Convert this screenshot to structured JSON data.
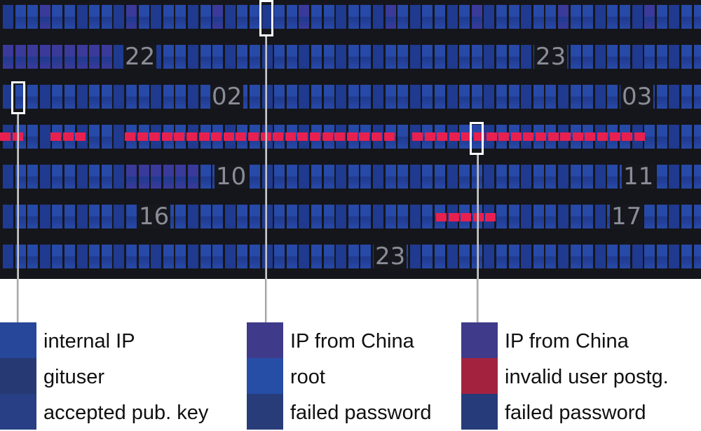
{
  "colors": {
    "background": "#15161c",
    "cell_blue_light": "#2749a8",
    "cell_blue_dark": "#1f3a8e",
    "cell_purple": "#3a3a9a",
    "alert_red": "#e8204f",
    "marker": "#ffffff"
  },
  "rows": [
    {
      "hour_labels": []
    },
    {
      "hour_labels": [
        "22",
        "23"
      ]
    },
    {
      "hour_labels": [
        "02",
        "03"
      ]
    },
    {
      "hour_labels": []
    },
    {
      "hour_labels": [
        "10",
        "11"
      ]
    },
    {
      "hour_labels": [
        "16",
        "17"
      ]
    },
    {
      "hour_labels": [
        "23"
      ]
    }
  ],
  "legend": [
    {
      "items": [
        {
          "label": "internal IP",
          "color": "#27479a"
        },
        {
          "label": "gituser",
          "color": "#263973"
        },
        {
          "label": "accepted pub. key",
          "color": "#283f86"
        }
      ]
    },
    {
      "items": [
        {
          "label": "IP from China",
          "color": "#3f3a8a"
        },
        {
          "label": "root",
          "color": "#274ea6"
        },
        {
          "label": "failed password",
          "color": "#293c7a"
        }
      ]
    },
    {
      "items": [
        {
          "label": "IP from China",
          "color": "#3f3a8a"
        },
        {
          "label": "invalid user postg.",
          "color": "#a3233f"
        },
        {
          "label": "failed password",
          "color": "#263b7a"
        }
      ]
    }
  ]
}
